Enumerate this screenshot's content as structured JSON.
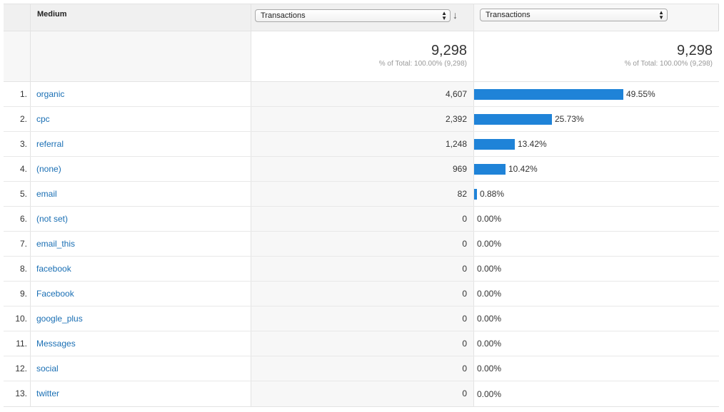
{
  "header": {
    "dimension": "Medium",
    "metric_select_1": "Transactions",
    "metric_select_2": "Transactions"
  },
  "totals": {
    "value": "9,298",
    "value_sub": "% of Total: 100.00% (9,298)",
    "pct_value": "9,298",
    "pct_sub": "% of Total: 100.00% (9,298)"
  },
  "rows": [
    {
      "index": "1.",
      "medium": "organic",
      "transactions": "4,607",
      "percent": "49.55%",
      "share": 49.55
    },
    {
      "index": "2.",
      "medium": "cpc",
      "transactions": "2,392",
      "percent": "25.73%",
      "share": 25.73
    },
    {
      "index": "3.",
      "medium": "referral",
      "transactions": "1,248",
      "percent": "13.42%",
      "share": 13.42
    },
    {
      "index": "4.",
      "medium": "(none)",
      "transactions": "969",
      "percent": "10.42%",
      "share": 10.42
    },
    {
      "index": "5.",
      "medium": "email",
      "transactions": "82",
      "percent": "0.88%",
      "share": 0.88
    },
    {
      "index": "6.",
      "medium": "(not set)",
      "transactions": "0",
      "percent": "0.00%",
      "share": 0
    },
    {
      "index": "7.",
      "medium": "email_this",
      "transactions": "0",
      "percent": "0.00%",
      "share": 0
    },
    {
      "index": "8.",
      "medium": "facebook",
      "transactions": "0",
      "percent": "0.00%",
      "share": 0
    },
    {
      "index": "9.",
      "medium": "Facebook",
      "transactions": "0",
      "percent": "0.00%",
      "share": 0
    },
    {
      "index": "10.",
      "medium": "google_plus",
      "transactions": "0",
      "percent": "0.00%",
      "share": 0
    },
    {
      "index": "11.",
      "medium": "Messages",
      "transactions": "0",
      "percent": "0.00%",
      "share": 0
    },
    {
      "index": "12.",
      "medium": "social",
      "transactions": "0",
      "percent": "0.00%",
      "share": 0
    },
    {
      "index": "13.",
      "medium": "twitter",
      "transactions": "0",
      "percent": "0.00%",
      "share": 0
    }
  ],
  "colors": {
    "bar": "#1f83d8",
    "link": "#1a6fb4"
  },
  "icons": {
    "sort": "sort-down-arrow-icon",
    "select": "select-arrows-icon"
  }
}
